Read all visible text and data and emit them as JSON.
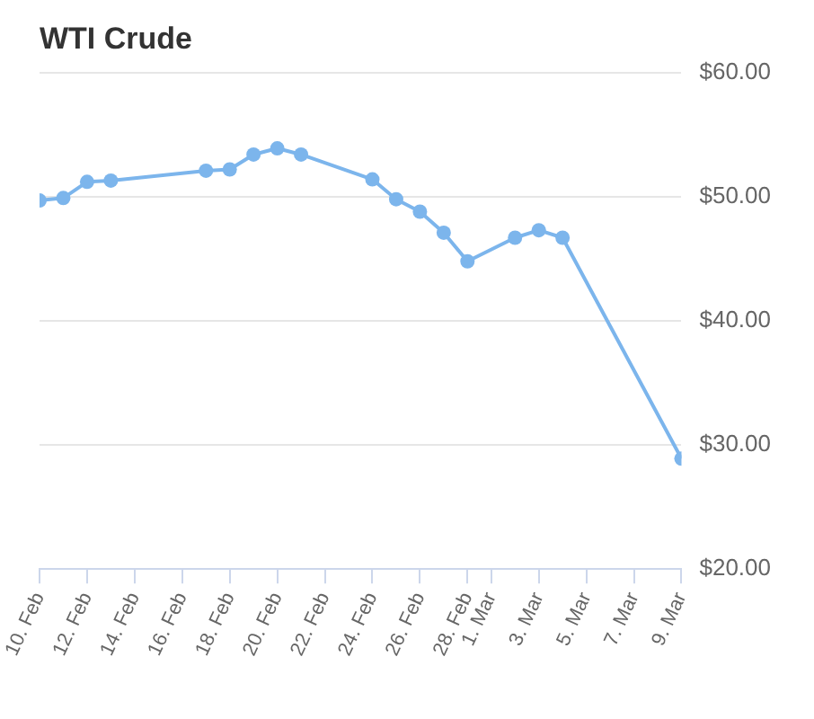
{
  "chart_data": {
    "type": "line",
    "title": "WTI Crude",
    "x": [
      "--02-10",
      "--02-11",
      "--02-12",
      "--02-13",
      "--02-17",
      "--02-18",
      "--02-19",
      "--02-20",
      "--02-21",
      "--02-24",
      "--02-25",
      "--02-26",
      "--02-27",
      "--02-28",
      "--03-02",
      "--03-03",
      "--03-04",
      "--03-09"
    ],
    "series": [
      {
        "color": "#7cb5ec",
        "values": [
          49.7,
          49.9,
          51.2,
          51.3,
          52.1,
          52.2,
          53.4,
          53.9,
          53.4,
          51.4,
          49.8,
          48.8,
          47.1,
          44.8,
          46.7,
          47.3,
          46.7,
          28.9
        ]
      }
    ],
    "xlim": [
      "--02-10",
      "--03-09"
    ],
    "xticks": [
      {
        "value": "--02-10",
        "label": "10. Feb"
      },
      {
        "value": "--02-12",
        "label": "12. Feb"
      },
      {
        "value": "--02-14",
        "label": "14. Feb"
      },
      {
        "value": "--02-16",
        "label": "16. Feb"
      },
      {
        "value": "--02-18",
        "label": "18. Feb"
      },
      {
        "value": "--02-20",
        "label": "20. Feb"
      },
      {
        "value": "--02-22",
        "label": "22. Feb"
      },
      {
        "value": "--02-24",
        "label": "24. Feb"
      },
      {
        "value": "--02-26",
        "label": "26. Feb"
      },
      {
        "value": "--02-28",
        "label": "28. Feb"
      },
      {
        "value": "--03-01",
        "label": "1. Mar"
      },
      {
        "value": "--03-03",
        "label": "3. Mar"
      },
      {
        "value": "--03-05",
        "label": "5. Mar"
      },
      {
        "value": "--03-07",
        "label": "7. Mar"
      },
      {
        "value": "--03-09",
        "label": "9. Mar"
      }
    ],
    "ylim": [
      20,
      60
    ],
    "yticks": [
      {
        "value": 20,
        "label": "$20.00"
      },
      {
        "value": 30,
        "label": "$30.00"
      },
      {
        "value": 40,
        "label": "$40.00"
      },
      {
        "value": 50,
        "label": "$50.00"
      },
      {
        "value": 60,
        "label": "$60.00"
      }
    ],
    "grid": "y",
    "legend": false,
    "marker": "circle",
    "line_style": "solid"
  }
}
